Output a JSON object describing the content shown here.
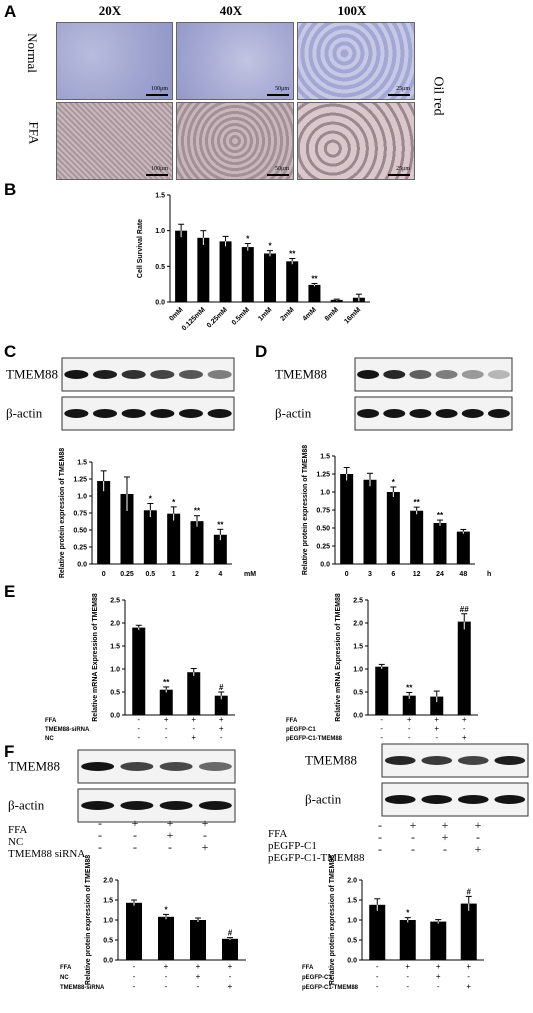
{
  "panel_labels": {
    "A": "A",
    "B": "B",
    "C": "C",
    "D": "D",
    "E": "E",
    "F": "F"
  },
  "panelA": {
    "headers": [
      "20X",
      "40X",
      "100X"
    ],
    "rows": [
      "Normal",
      "FFA"
    ],
    "stain": "Oil red",
    "scales": [
      "100μm",
      "50μm",
      "25μm",
      "100μm",
      "50μm",
      "25μm"
    ]
  },
  "chart_data": [
    {
      "id": "B",
      "type": "bar",
      "ylabel": "Cell Survival Rate",
      "categories": [
        "0mM",
        "0.125mM",
        "0.25mM",
        "0.5mM",
        "1mM",
        "2mM",
        "4mM",
        "8mM",
        "16mM"
      ],
      "values": [
        1.0,
        0.9,
        0.85,
        0.77,
        0.68,
        0.57,
        0.24,
        0.03,
        0.06
      ],
      "errors": [
        0.09,
        0.1,
        0.07,
        0.05,
        0.04,
        0.04,
        0.02,
        0.01,
        0.05
      ],
      "marks": [
        "",
        "",
        "",
        "*",
        "*",
        "**",
        "**",
        "",
        ""
      ],
      "ylim": [
        0,
        1.5
      ],
      "yticks": [
        "0.0",
        "0.5",
        "1.0",
        "1.5"
      ]
    },
    {
      "id": "C",
      "type": "bar",
      "ylabel": "Relative protein expression of TMEM88",
      "categories": [
        "0",
        "0.25",
        "0.5",
        "1",
        "2",
        "4"
      ],
      "values": [
        1.22,
        1.03,
        0.79,
        0.74,
        0.63,
        0.43
      ],
      "errors": [
        0.15,
        0.25,
        0.1,
        0.1,
        0.08,
        0.08
      ],
      "marks": [
        "",
        "",
        "*",
        "*",
        "**",
        "**"
      ],
      "unit": "mM",
      "ylim": [
        0,
        1.5
      ],
      "yticks": [
        "0.0",
        "0.25",
        "0.50",
        "0.75",
        "1.0",
        "1.25",
        "1.5"
      ]
    },
    {
      "id": "D",
      "type": "bar",
      "ylabel": "Relative protein expression of TMEM88",
      "categories": [
        "0",
        "3",
        "6",
        "12",
        "24",
        "48"
      ],
      "values": [
        1.25,
        1.17,
        1.0,
        0.74,
        0.57,
        0.45
      ],
      "errors": [
        0.09,
        0.09,
        0.07,
        0.05,
        0.04,
        0.03
      ],
      "marks": [
        "",
        "",
        "*",
        "**",
        "**",
        ""
      ],
      "unit": "h",
      "ylim": [
        0,
        1.5
      ],
      "yticks": [
        "0.0",
        "0.25",
        "0.50",
        "0.75",
        "1.0",
        "1.25",
        "1.5"
      ]
    },
    {
      "id": "E1",
      "type": "bar",
      "ylabel": "Relative mRNA Expression of TMEM88",
      "categories": [
        "1",
        "2",
        "3",
        "4"
      ],
      "values": [
        1.9,
        0.55,
        0.93,
        0.42
      ],
      "errors": [
        0.05,
        0.06,
        0.08,
        0.08
      ],
      "marks": [
        "",
        "**",
        "",
        "#"
      ],
      "ylim": [
        0,
        2.5
      ],
      "yticks": [
        "0.0",
        "0.5",
        "1.0",
        "1.5",
        "2.0",
        "2.5"
      ],
      "conditions": [
        [
          "FFA",
          "-",
          "+",
          "+",
          "+"
        ],
        [
          "TMEM88-siRNA",
          "-",
          "-",
          "-",
          "+"
        ],
        [
          "NC",
          "-",
          "-",
          "+",
          "-"
        ]
      ]
    },
    {
      "id": "E2",
      "type": "bar",
      "ylabel": "Relative mRNA Expression of TMEM88",
      "categories": [
        "1",
        "2",
        "3",
        "4"
      ],
      "values": [
        1.05,
        0.42,
        0.4,
        2.03
      ],
      "errors": [
        0.05,
        0.07,
        0.12,
        0.17
      ],
      "marks": [
        "",
        "**",
        "",
        "##"
      ],
      "ylim": [
        0,
        2.5
      ],
      "yticks": [
        "0.0",
        "0.5",
        "1.0",
        "1.5",
        "2.0",
        "2.5"
      ],
      "conditions": [
        [
          "FFA",
          "-",
          "+",
          "+",
          "+"
        ],
        [
          "pEGFP-C1",
          "-",
          "-",
          "+",
          "-"
        ],
        [
          "pEGFP-C1-TMEM88",
          "-",
          "-",
          "-",
          "+"
        ]
      ]
    },
    {
      "id": "F1",
      "type": "bar",
      "ylabel": "Relative protein expression of TMEM88",
      "categories": [
        "1",
        "2",
        "3",
        "4"
      ],
      "values": [
        1.43,
        1.08,
        1.0,
        0.53
      ],
      "errors": [
        0.07,
        0.06,
        0.05,
        0.03
      ],
      "marks": [
        "",
        "*",
        "",
        "#"
      ],
      "ylim": [
        0,
        2.0
      ],
      "yticks": [
        "0.0",
        "0.5",
        "1.0",
        "1.5",
        "2.0"
      ],
      "conditions": [
        [
          "FFA",
          "-",
          "+",
          "+",
          "+"
        ],
        [
          "NC",
          "-",
          "-",
          "+",
          "-"
        ],
        [
          "TMEM88-siRNA",
          "-",
          "-",
          "-",
          "+"
        ]
      ]
    },
    {
      "id": "F2",
      "type": "bar",
      "ylabel": "Relative protein expression of TMEM88",
      "categories": [
        "1",
        "2",
        "3",
        "4"
      ],
      "values": [
        1.38,
        1.0,
        0.96,
        1.41
      ],
      "errors": [
        0.15,
        0.06,
        0.05,
        0.18
      ],
      "marks": [
        "",
        "*",
        "",
        "#"
      ],
      "ylim": [
        0,
        2.0
      ],
      "yticks": [
        "0.0",
        "0.5",
        "1.0",
        "1.5",
        "2.0"
      ],
      "conditions": [
        [
          "FFA",
          "-",
          "+",
          "+",
          "+"
        ],
        [
          "pEGFP-C1",
          "-",
          "-",
          "+",
          "-"
        ],
        [
          "pEGFP-C1-TMEM88",
          "-",
          "-",
          "-",
          "+"
        ]
      ]
    }
  ],
  "blots": {
    "C": {
      "target": "TMEM88",
      "control": "β-actin",
      "target_intensity": [
        1.0,
        0.95,
        0.85,
        0.75,
        0.65,
        0.45
      ]
    },
    "D": {
      "target": "TMEM88",
      "control": "β-actin",
      "target_intensity": [
        1.0,
        0.9,
        0.6,
        0.45,
        0.3,
        0.15
      ]
    },
    "F1": {
      "target": "TMEM88",
      "control": "β-actin",
      "target_intensity": [
        1.0,
        0.75,
        0.72,
        0.55
      ]
    },
    "F2": {
      "target": "TMEM88",
      "control": "β-actin",
      "target_intensity": [
        0.9,
        0.8,
        0.75,
        0.95
      ]
    }
  },
  "blot_conditions": {
    "F1": [
      [
        "FFA",
        "-",
        "+",
        "+",
        "+"
      ],
      [
        "NC",
        "-",
        "-",
        "+",
        "-"
      ],
      [
        "TMEM88 siRNA",
        "-",
        "-",
        "-",
        "+"
      ]
    ],
    "F2": [
      [
        "FFA",
        "-",
        "+",
        "+",
        "+"
      ],
      [
        "pEGFP-C1",
        "-",
        "-",
        "+",
        "-"
      ],
      [
        "pEGFP-C1-TMEM88",
        "-",
        "-",
        "-",
        "+"
      ]
    ]
  }
}
